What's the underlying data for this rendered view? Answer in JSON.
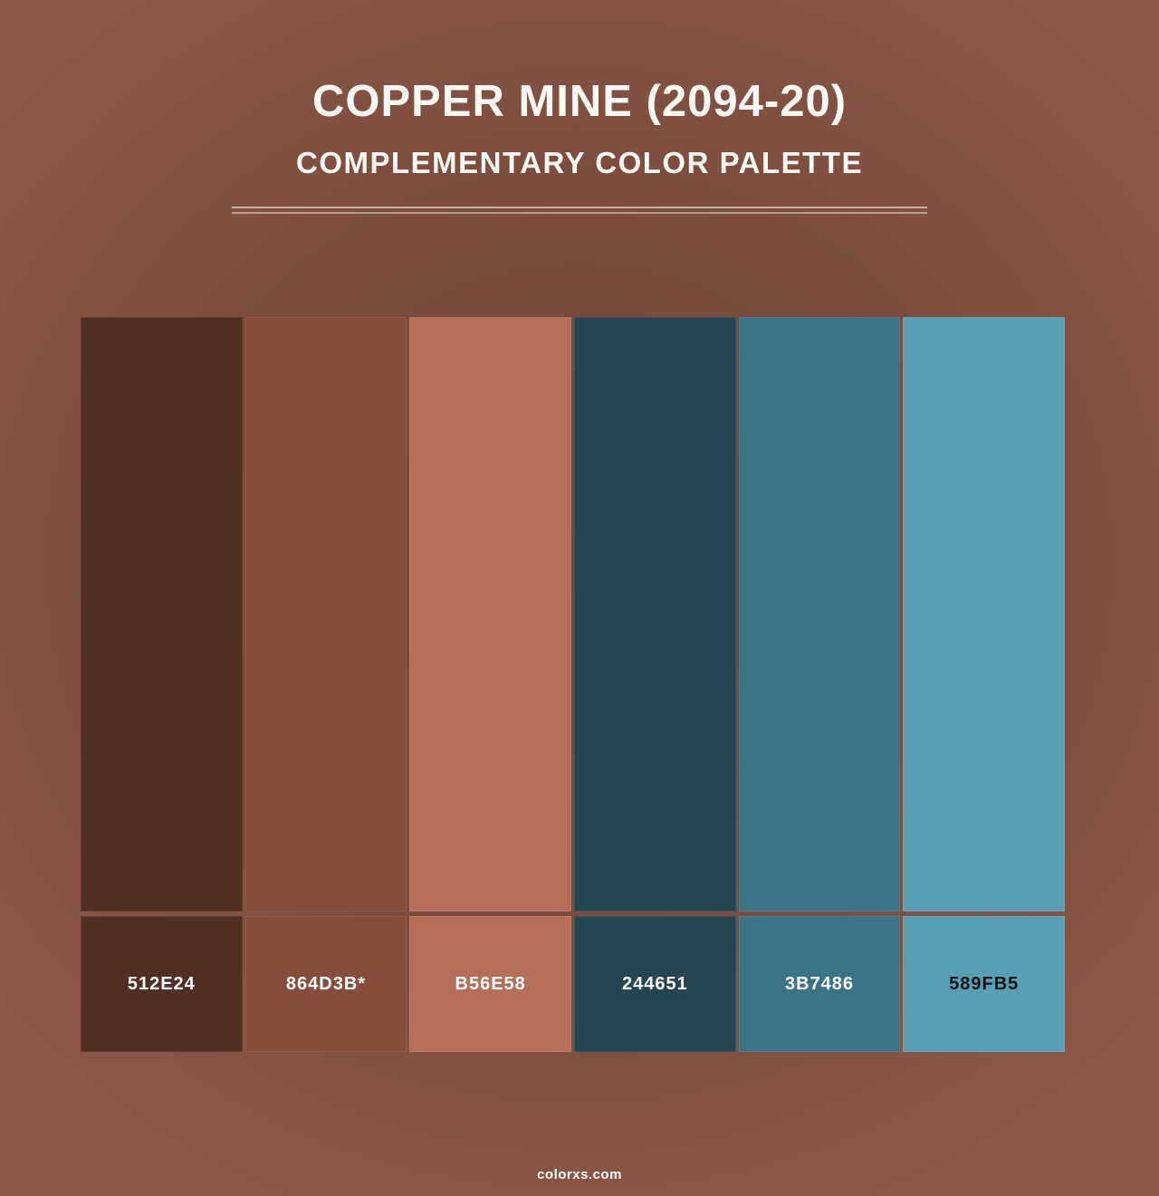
{
  "page": {
    "title": "COPPER MINE (2094-20)",
    "subtitle": "COMPLEMENTARY COLOR PALETTE",
    "footer": "colorxs.com",
    "background": {
      "center": "#73463A",
      "edge": "#8D5747"
    },
    "divider_color": "rgba(255,240,232,0.55)",
    "text_color": "#FDF8F3"
  },
  "palette": {
    "swatches": [
      {
        "hex": "#512E24",
        "label": "512E24",
        "label_color": "#FFFFFF"
      },
      {
        "hex": "#864D3B",
        "label": "864D3B*",
        "label_color": "#FFFFFF"
      },
      {
        "hex": "#B56E58",
        "label": "B56E58",
        "label_color": "#FFFFFF"
      },
      {
        "hex": "#244651",
        "label": "244651",
        "label_color": "#FFFFFF"
      },
      {
        "hex": "#3B7486",
        "label": "3B7486",
        "label_color": "#FFFFFF"
      },
      {
        "hex": "#589FB5",
        "label": "589FB5",
        "label_color": "#141414"
      }
    ]
  }
}
